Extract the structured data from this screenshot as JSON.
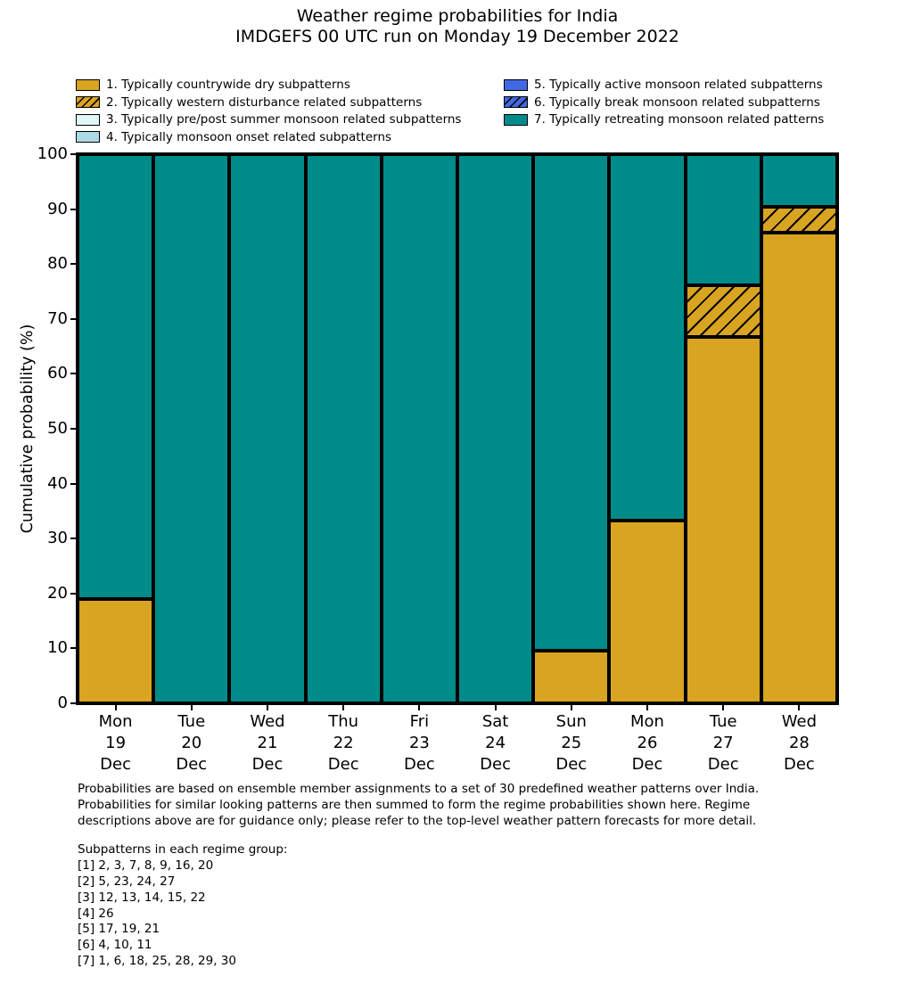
{
  "title": {
    "line1": "Weather regime probabilities for India",
    "line2": "IMDGEFS 00 UTC run on Monday 19 December 2022"
  },
  "legend": {
    "items": [
      {
        "label": "1. Typically countrywide dry subpatterns",
        "color": "#d8a421",
        "hatch": false
      },
      {
        "label": "2. Typically western disturbance related subpatterns",
        "color": "#d8a421",
        "hatch": true
      },
      {
        "label": "3. Typically pre/post summer monsoon related subpatterns",
        "color": "#e0f8f8",
        "hatch": false
      },
      {
        "label": "4. Typically monsoon onset related subpatterns",
        "color": "#add8e6",
        "hatch": false
      },
      {
        "label": "5. Typically active monsoon related subpatterns",
        "color": "#4169e1",
        "hatch": false
      },
      {
        "label": "6. Typically break monsoon related subpatterns",
        "color": "#4169e1",
        "hatch": true
      },
      {
        "label": "7. Typically retreating monsoon related patterns",
        "color": "#008b8b",
        "hatch": false
      }
    ]
  },
  "chart_data": {
    "type": "bar",
    "stacked": true,
    "title": "Weather regime probabilities for India — IMDGEFS 00 UTC run on Monday 19 December 2022",
    "xlabel": "",
    "ylabel": "Cumulative probability (%)",
    "ylim": [
      0,
      100
    ],
    "yticks": [
      0,
      10,
      20,
      30,
      40,
      50,
      60,
      70,
      80,
      90,
      100
    ],
    "grid": false,
    "legend_position": "top",
    "categories": [
      [
        "Mon",
        "19",
        "Dec"
      ],
      [
        "Tue",
        "20",
        "Dec"
      ],
      [
        "Wed",
        "21",
        "Dec"
      ],
      [
        "Thu",
        "22",
        "Dec"
      ],
      [
        "Fri",
        "23",
        "Dec"
      ],
      [
        "Sat",
        "24",
        "Dec"
      ],
      [
        "Sun",
        "25",
        "Dec"
      ],
      [
        "Mon",
        "26",
        "Dec"
      ],
      [
        "Tue",
        "27",
        "Dec"
      ],
      [
        "Wed",
        "28",
        "Dec"
      ]
    ],
    "series": [
      {
        "name": "1. Typically countrywide dry subpatterns",
        "color": "#d8a421",
        "hatch": false,
        "values": [
          19.05,
          0,
          0,
          0,
          0,
          0,
          9.52,
          33.33,
          66.67,
          85.71
        ]
      },
      {
        "name": "2. Typically western disturbance related subpatterns",
        "color": "#d8a421",
        "hatch": true,
        "values": [
          0,
          0,
          0,
          0,
          0,
          0,
          0,
          0,
          9.52,
          4.76
        ]
      },
      {
        "name": "3. Typically pre/post summer monsoon related subpatterns",
        "color": "#e0f8f8",
        "hatch": false,
        "values": [
          0,
          0,
          0,
          0,
          0,
          0,
          0,
          0,
          0,
          0
        ]
      },
      {
        "name": "4. Typically monsoon onset related subpatterns",
        "color": "#add8e6",
        "hatch": false,
        "values": [
          0,
          0,
          0,
          0,
          0,
          0,
          0,
          0,
          0,
          0
        ]
      },
      {
        "name": "5. Typically active monsoon related subpatterns",
        "color": "#4169e1",
        "hatch": false,
        "values": [
          0,
          0,
          0,
          0,
          0,
          0,
          0,
          0,
          0,
          0
        ]
      },
      {
        "name": "6. Typically break monsoon related subpatterns",
        "color": "#4169e1",
        "hatch": true,
        "values": [
          0,
          0,
          0,
          0,
          0,
          0,
          0,
          0,
          0,
          0
        ]
      },
      {
        "name": "7. Typically retreating monsoon related patterns",
        "color": "#008b8b",
        "hatch": false,
        "values": [
          80.95,
          100,
          100,
          100,
          100,
          100,
          90.48,
          66.67,
          23.81,
          9.52
        ]
      }
    ]
  },
  "footer": {
    "para": [
      "Probabilities are based on ensemble member assignments to a set of 30 predefined weather patterns over India.",
      "Probabilities for similar looking patterns are then summed to form the regime probabilities shown here. Regime",
      "descriptions above are for guidance only; please refer to the top-level weather pattern forecasts for more detail."
    ],
    "subpatterns_header": "Subpatterns in each regime group:",
    "subpatterns": [
      "[1] 2, 3, 7, 8, 9, 16, 20",
      "[2] 5, 23, 24, 27",
      "[3] 12, 13, 14, 15, 22",
      "[4] 26",
      "[5] 17, 19, 21",
      "[6] 4, 10, 11",
      "[7] 1, 6, 18, 25, 28, 29, 30"
    ]
  }
}
